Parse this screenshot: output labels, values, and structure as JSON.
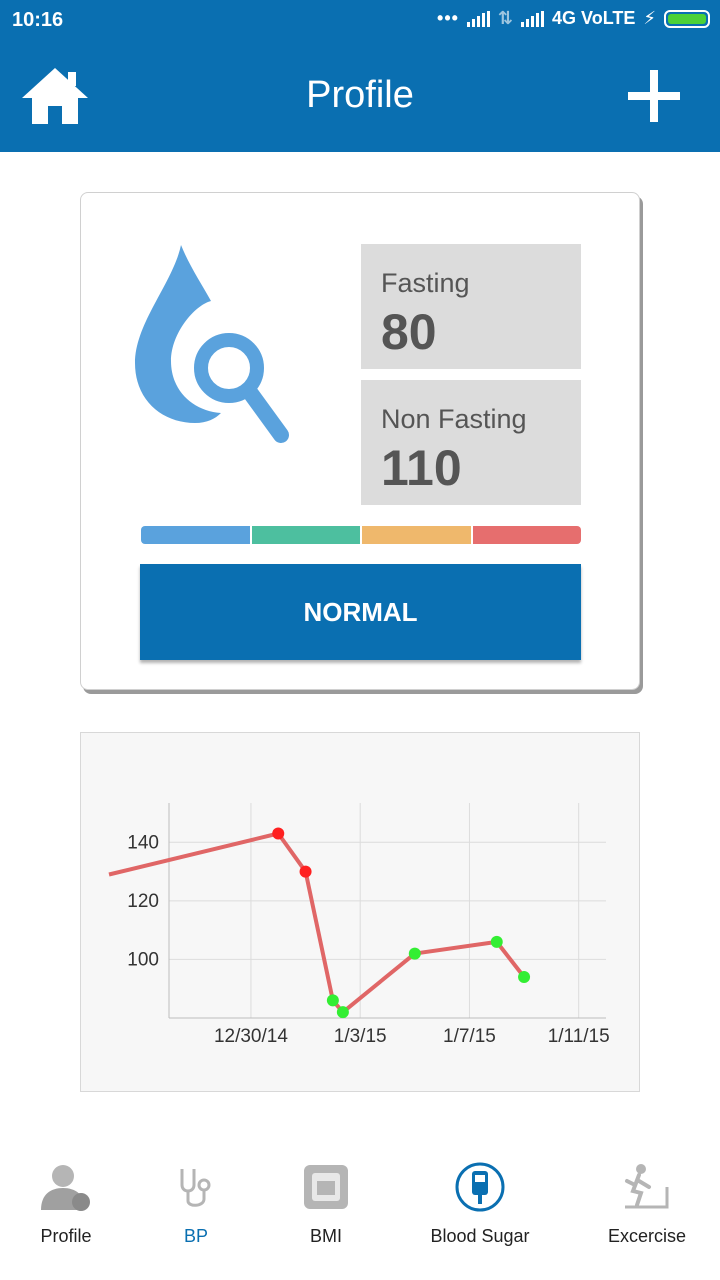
{
  "statusbar": {
    "time": "10:16",
    "network": "4G VoLTE"
  },
  "header": {
    "title": "Profile",
    "home_icon": "home-icon",
    "add_icon": "plus-icon"
  },
  "card": {
    "fasting": {
      "label": "Fasting",
      "value": "80"
    },
    "non_fasting": {
      "label": "Non Fasting",
      "value": "110"
    },
    "range_colors": [
      "#5aa2dd",
      "#4dbf9f",
      "#efb86c",
      "#e66e6e"
    ],
    "status_label": "NORMAL"
  },
  "chart_data": {
    "type": "line",
    "x_ticks": [
      "12/30/14",
      "1/3/15",
      "1/7/15",
      "1/11/15"
    ],
    "y_ticks": [
      "100",
      "120",
      "140"
    ],
    "ylim": [
      80,
      150
    ],
    "xlim": [
      "12/27/14",
      "1/12/15"
    ],
    "grid": true,
    "line_color": "#e06666",
    "points": [
      {
        "x": "12/27/14",
        "y": 129,
        "color": null
      },
      {
        "x": "12/31/14",
        "y": 143,
        "color": "#ff2020"
      },
      {
        "x": "1/1/15",
        "y": 130,
        "color": "#ff2020"
      },
      {
        "x": "1/2/15",
        "y": 86,
        "color": "#33ee33"
      },
      {
        "x": "1/2/15",
        "y": 82,
        "color": "#33ee33"
      },
      {
        "x": "1/5/15",
        "y": 102,
        "color": "#33ee33"
      },
      {
        "x": "1/8/15",
        "y": 106,
        "color": "#33ee33"
      },
      {
        "x": "1/9/15",
        "y": 94,
        "color": "#33ee33"
      }
    ]
  },
  "nav": {
    "items": [
      {
        "label": "Profile",
        "icon": "user-profile-icon"
      },
      {
        "label": "BP",
        "icon": "stethoscope-icon"
      },
      {
        "label": "BMI",
        "icon": "scale-icon"
      },
      {
        "label": "Blood Sugar",
        "icon": "glucose-meter-icon"
      },
      {
        "label": "Excercise",
        "icon": "treadmill-icon"
      }
    ],
    "active_color": "#0a6fb1"
  }
}
